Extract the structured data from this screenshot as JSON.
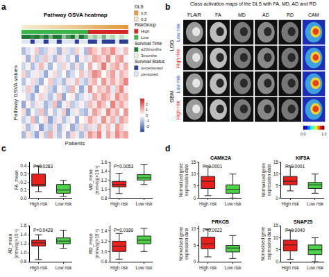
{
  "chart_data": [
    {
      "type": "heatmap",
      "panel": "a",
      "title": "Pathway GSVA heatmap",
      "x_label": "Patients",
      "y_label": "Pathway GSVA values",
      "tick_labels": false,
      "cells": [
        [
          -1.2,
          0.4,
          -0.6,
          -1.5,
          0.3,
          -0.9,
          1.1,
          -0.4,
          -1.0,
          0.2,
          -1.3,
          0.6,
          -0.3,
          -1.1,
          0.5,
          1.4,
          0.8,
          1.7,
          -0.2,
          1.2,
          0.5,
          1.6,
          0.9,
          1.3
        ],
        [
          0.3,
          -1.1,
          -0.4,
          0.2,
          -1.6,
          -0.5,
          -0.9,
          0.4,
          -1.2,
          -0.3,
          0.1,
          -1.4,
          -0.7,
          0.5,
          -0.8,
          0.6,
          -0.4,
          1.1,
          0.3,
          0.9,
          -0.2,
          1.4,
          0.7,
          0.2
        ],
        [
          -0.8,
          -0.3,
          0.9,
          -1.2,
          -0.2,
          0.6,
          -1.5,
          -0.6,
          0.3,
          -1.0,
          -0.4,
          0.2,
          -1.3,
          -0.1,
          0.4,
          1.2,
          0.6,
          -0.3,
          1.5,
          0.4,
          1.0,
          -0.5,
          1.3,
          0.8
        ],
        [
          0.5,
          -1.4,
          -0.2,
          -0.7,
          0.8,
          -1.1,
          0.2,
          -0.9,
          -0.3,
          0.7,
          -1.6,
          -0.4,
          0.3,
          -0.8,
          -1.2,
          0.3,
          1.3,
          0.7,
          0.2,
          1.6,
          0.6,
          1.1,
          -0.1,
          1.4
        ],
        [
          -1.5,
          0.2,
          -0.8,
          0.4,
          -0.3,
          -1.2,
          -0.6,
          0.9,
          -1.4,
          -0.2,
          0.5,
          -0.9,
          -0.5,
          0.2,
          -0.7,
          0.9,
          0.4,
          1.4,
          0.8,
          -0.2,
          1.7,
          0.6,
          1.2,
          0.5
        ],
        [
          0.1,
          -0.6,
          -1.3,
          -0.2,
          0.6,
          -0.4,
          -1.0,
          -0.3,
          0.8,
          -1.5,
          -0.1,
          0.3,
          -1.1,
          -0.6,
          0.2,
          -0.4,
          1.1,
          0.5,
          1.3,
          0.9,
          0.3,
          1.5,
          0.7,
          1.0
        ],
        [
          -0.4,
          0.7,
          -0.5,
          -1.6,
          -0.1,
          0.4,
          -0.7,
          -1.3,
          0.2,
          -0.5,
          -0.9,
          1.0,
          -0.2,
          -1.4,
          -0.3,
          1.5,
          0.2,
          0.9,
          0.6,
          1.2,
          -0.4,
          0.8,
          1.6,
          0.3
        ],
        [
          -1.0,
          -0.2,
          0.5,
          -0.6,
          -1.3,
          0.1,
          0.7,
          -0.8,
          -0.5,
          -1.1,
          0.4,
          -0.3,
          0.9,
          -0.5,
          -1.0,
          0.6,
          1.0,
          -0.2,
          1.4,
          0.5,
          1.1,
          0.4,
          0.9,
          1.7
        ],
        [
          0.6,
          -0.9,
          -0.3,
          0.3,
          -0.5,
          -1.4,
          -0.2,
          0.5,
          -0.7,
          0.1,
          -1.2,
          -0.6,
          -0.1,
          0.8,
          -0.4,
          0.8,
          1.6,
          1.2,
          0.1,
          0.7,
          1.3,
          -0.3,
          1.0,
          0.6
        ],
        [
          -0.7,
          0.2,
          -1.1,
          -0.4,
          0.9,
          -0.3,
          -1.2,
          0.1,
          -0.6,
          0.6,
          -0.2,
          -1.0,
          0.4,
          -0.9,
          0.1,
          1.1,
          -0.1,
          0.6,
          1.8,
          0.3,
          0.8,
          1.2,
          0.4,
          1.1
        ],
        [
          0.2,
          -1.3,
          0.4,
          -0.9,
          -0.6,
          0.8,
          -0.4,
          -1.1,
          0.5,
          -0.3,
          -0.8,
          0.2,
          -1.5,
          0.3,
          -0.6,
          0.4,
          1.2,
          0.9,
          0.5,
          1.5,
          0.2,
          1.0,
          1.4,
          -0.2
        ],
        [
          -1.1,
          -0.5,
          -0.2,
          0.7,
          -1.0,
          -0.7,
          0.3,
          -0.4,
          -1.3,
          0.4,
          -0.5,
          -0.8,
          0.6,
          -0.2,
          -1.1,
          1.3,
          0.7,
          0.3,
          1.1,
          0.8,
          1.6,
          0.5,
          -0.3,
          0.9
        ]
      ],
      "colorbar": {
        "range": [
          -3,
          3
        ],
        "ticks": [
          -2,
          -1,
          0,
          1,
          2
        ]
      },
      "annotation_rows": [
        {
          "name": "DLS",
          "values": [
            0.15,
            0.18,
            0.2,
            0.22,
            0.25,
            0.27,
            0.3,
            0.32,
            0.35,
            0.37,
            0.4,
            0.42,
            0.45,
            0.47,
            0.5,
            0.55,
            0.6,
            0.63,
            0.66,
            0.7,
            0.73,
            0.76,
            0.8,
            0.85
          ],
          "range": [
            0.1,
            0.9
          ],
          "keys": [
            0.8,
            0.2
          ],
          "colors": [
            "#f5f1dc",
            "#e0902a"
          ]
        },
        {
          "name": "RiskGroup",
          "values": [
            "Low",
            "Low",
            "Low",
            "Low",
            "Low",
            "Low",
            "Low",
            "Low",
            "Low",
            "Low",
            "Low",
            "Low",
            "Low",
            "Low",
            "Low",
            "High",
            "High",
            "High",
            "High",
            "High",
            "High",
            "High",
            "High",
            "High"
          ],
          "keys": [
            "High",
            "Low"
          ],
          "colors": [
            "#d62728",
            "#3cb44b"
          ]
        },
        {
          "name": "Survival Time",
          "values": [
            20,
            20,
            18,
            20,
            15,
            20,
            12,
            20,
            20,
            10,
            16,
            20,
            8,
            20,
            14,
            6,
            9,
            5,
            12,
            4,
            7,
            3,
            6,
            3
          ],
          "range": [
            3,
            20
          ],
          "keys": [
            {
              "value": 20,
              "label": "≥20months"
            },
            {
              "value": 3,
              "label": "3months"
            }
          ],
          "colors": [
            "#e5f5e0",
            "#1b7837"
          ]
        },
        {
          "name": "Survival Status",
          "values": [
            "censored",
            "censored",
            "uncensored",
            "censored",
            "censored",
            "uncensored",
            "censored",
            "censored",
            "uncensored",
            "censored",
            "censored",
            "censored",
            "uncensored",
            "censored",
            "censored",
            "uncensored",
            "uncensored",
            "censored",
            "uncensored",
            "uncensored",
            "uncensored",
            "censored",
            "uncensored",
            "uncensored"
          ],
          "keys": [
            "uncensored",
            "censored"
          ],
          "colors": [
            "#2c3e91",
            "#dfe6f5"
          ]
        }
      ]
    },
    {
      "type": "image_grid",
      "panel": "b",
      "title": "Class activation maps of the DLS with FA, MD, AD and RD",
      "columns": [
        "FLAIR",
        "FA",
        "MD",
        "AD",
        "RD",
        "CAM"
      ],
      "rows": [
        {
          "group": "LGG",
          "label": "Low risk",
          "color": "#1f4fbf"
        },
        {
          "group": "LGG",
          "label": "High risk",
          "color": "#e02020"
        },
        {
          "group": "GBM",
          "label": "Low risk",
          "color": "#1f4fbf"
        },
        {
          "group": "GBM",
          "label": "High risk",
          "color": "#e02020"
        }
      ],
      "colorbar": {
        "range": [
          0,
          1
        ],
        "ticks": [
          {
            "value": 0,
            "label": "0.0"
          },
          {
            "value": 1,
            "label": "1.0"
          }
        ]
      }
    },
    {
      "type": "box",
      "panel": "c",
      "y_label": [
        "FA_mean"
      ],
      "annotation": "P=0.0283",
      "ylim": [
        0,
        0.45
      ],
      "yticks": [
        {
          "value": 0,
          "label": "0.0"
        },
        0.1,
        0.2,
        0.3,
        0.4
      ],
      "series": [
        {
          "name": "High risk",
          "color": "#e8211e",
          "min": 0.08,
          "q1": 0.15,
          "median": 0.17,
          "q3": 0.3,
          "max": 0.4
        },
        {
          "name": "Low risk",
          "color": "#4dd24a",
          "min": 0.02,
          "q1": 0.06,
          "median": 0.1,
          "q3": 0.17,
          "max": 0.22
        }
      ]
    },
    {
      "type": "box",
      "y_label": [
        "MD_mean",
        "(mm²/s)(×10⁻³)"
      ],
      "annotation": "P=0.0053",
      "ylim": [
        0.8,
        1.6
      ],
      "yticks": [
        0.8,
        {
          "value": 1,
          "label": "1.0"
        },
        1.2,
        1.4,
        1.6
      ],
      "series": [
        {
          "name": "High risk",
          "color": "#e8211e",
          "min": 0.9,
          "q1": 1.05,
          "median": 1.1,
          "q3": 1.17,
          "max": 1.35
        },
        {
          "name": "Low risk",
          "color": "#4dd24a",
          "min": 1.1,
          "q1": 1.2,
          "median": 1.25,
          "q3": 1.32,
          "max": 1.55
        }
      ]
    },
    {
      "type": "box",
      "y_label": [
        "AD_mean",
        "(mm²/s)(×10⁻³)"
      ],
      "annotation": "P=0.0428",
      "ylim": [
        0.8,
        1.6
      ],
      "yticks": [
        0.8,
        {
          "value": 1,
          "label": "1.0"
        },
        1.2,
        1.4,
        1.6
      ],
      "series": [
        {
          "name": "High risk",
          "color": "#e8211e",
          "min": 0.85,
          "q1": 1.15,
          "median": 1.22,
          "q3": 1.28,
          "max": 1.4
        },
        {
          "name": "Low risk",
          "color": "#4dd24a",
          "min": 1.1,
          "q1": 1.2,
          "median": 1.26,
          "q3": 1.33,
          "max": 1.5
        }
      ]
    },
    {
      "type": "box",
      "y_label": [
        "RD_mean",
        "(mm²/s)(×10⁻³)"
      ],
      "annotation": "P=0.0189",
      "ylim": [
        0.8,
        1.5
      ],
      "yticks": [
        0.8,
        {
          "value": 1,
          "label": "1.0"
        },
        1.2,
        1.4
      ],
      "series": [
        {
          "name": "High risk",
          "color": "#e8211e",
          "min": 0.85,
          "q1": 1.0,
          "median": 1.1,
          "q3": 1.2,
          "max": 1.35
        },
        {
          "name": "Low risk",
          "color": "#4dd24a",
          "min": 1.0,
          "q1": 1.15,
          "median": 1.22,
          "q3": 1.3,
          "max": 1.45
        }
      ]
    },
    {
      "type": "box",
      "panel": "d",
      "title": "CAMK2A",
      "y_label": [
        "Normalised gene",
        "expression data"
      ],
      "annotation": "P=0.0001",
      "ylim": [
        0,
        15
      ],
      "yticks": [
        0,
        5,
        10,
        15
      ],
      "series": [
        {
          "name": "High risk",
          "color": "#e8211e",
          "min": 1,
          "q1": 4,
          "median": 7,
          "q3": 9,
          "max": 13
        },
        {
          "name": "Low risk",
          "color": "#4dd24a",
          "min": 0,
          "q1": 2,
          "median": 3.5,
          "q3": 5.5,
          "max": 10
        }
      ]
    },
    {
      "type": "box",
      "title": "KIF5A",
      "y_label": [
        "Normalised gene",
        "expression data"
      ],
      "annotation": "P=0.0001",
      "ylim": [
        0,
        15
      ],
      "yticks": [
        0,
        5,
        10,
        15
      ],
      "series": [
        {
          "name": "High risk",
          "color": "#e8211e",
          "min": 3,
          "q1": 5.5,
          "median": 7,
          "q3": 9,
          "max": 13
        },
        {
          "name": "Low risk",
          "color": "#4dd24a",
          "min": 2,
          "q1": 4,
          "median": 5.5,
          "q3": 6.5,
          "max": 10
        }
      ]
    },
    {
      "type": "box",
      "title": "PRKCB",
      "y_label": [
        "Normalised gene",
        "expression data"
      ],
      "annotation": "P=0.0022",
      "ylim": [
        0,
        11
      ],
      "yticks": [
        0,
        5,
        10
      ],
      "series": [
        {
          "name": "High risk",
          "color": "#e8211e",
          "min": 1.5,
          "q1": 4,
          "median": 5.5,
          "q3": 7.5,
          "max": 10
        },
        {
          "name": "Low risk",
          "color": "#4dd24a",
          "min": 1,
          "q1": 3,
          "median": 4.2,
          "q3": 5,
          "max": 8
        }
      ]
    },
    {
      "type": "box",
      "title": "SNAP25",
      "y_label": [
        "Normalised gene",
        "expression data"
      ],
      "annotation": "P=0.0040",
      "ylim": [
        0,
        15
      ],
      "yticks": [
        0,
        5,
        10,
        15
      ],
      "series": [
        {
          "name": "High risk",
          "color": "#e8211e",
          "min": 1,
          "q1": 4.5,
          "median": 7,
          "q3": 9,
          "max": 13
        },
        {
          "name": "Low risk",
          "color": "#4dd24a",
          "min": 0,
          "q1": 3,
          "median": 5,
          "q3": 7,
          "max": 10
        }
      ]
    }
  ]
}
